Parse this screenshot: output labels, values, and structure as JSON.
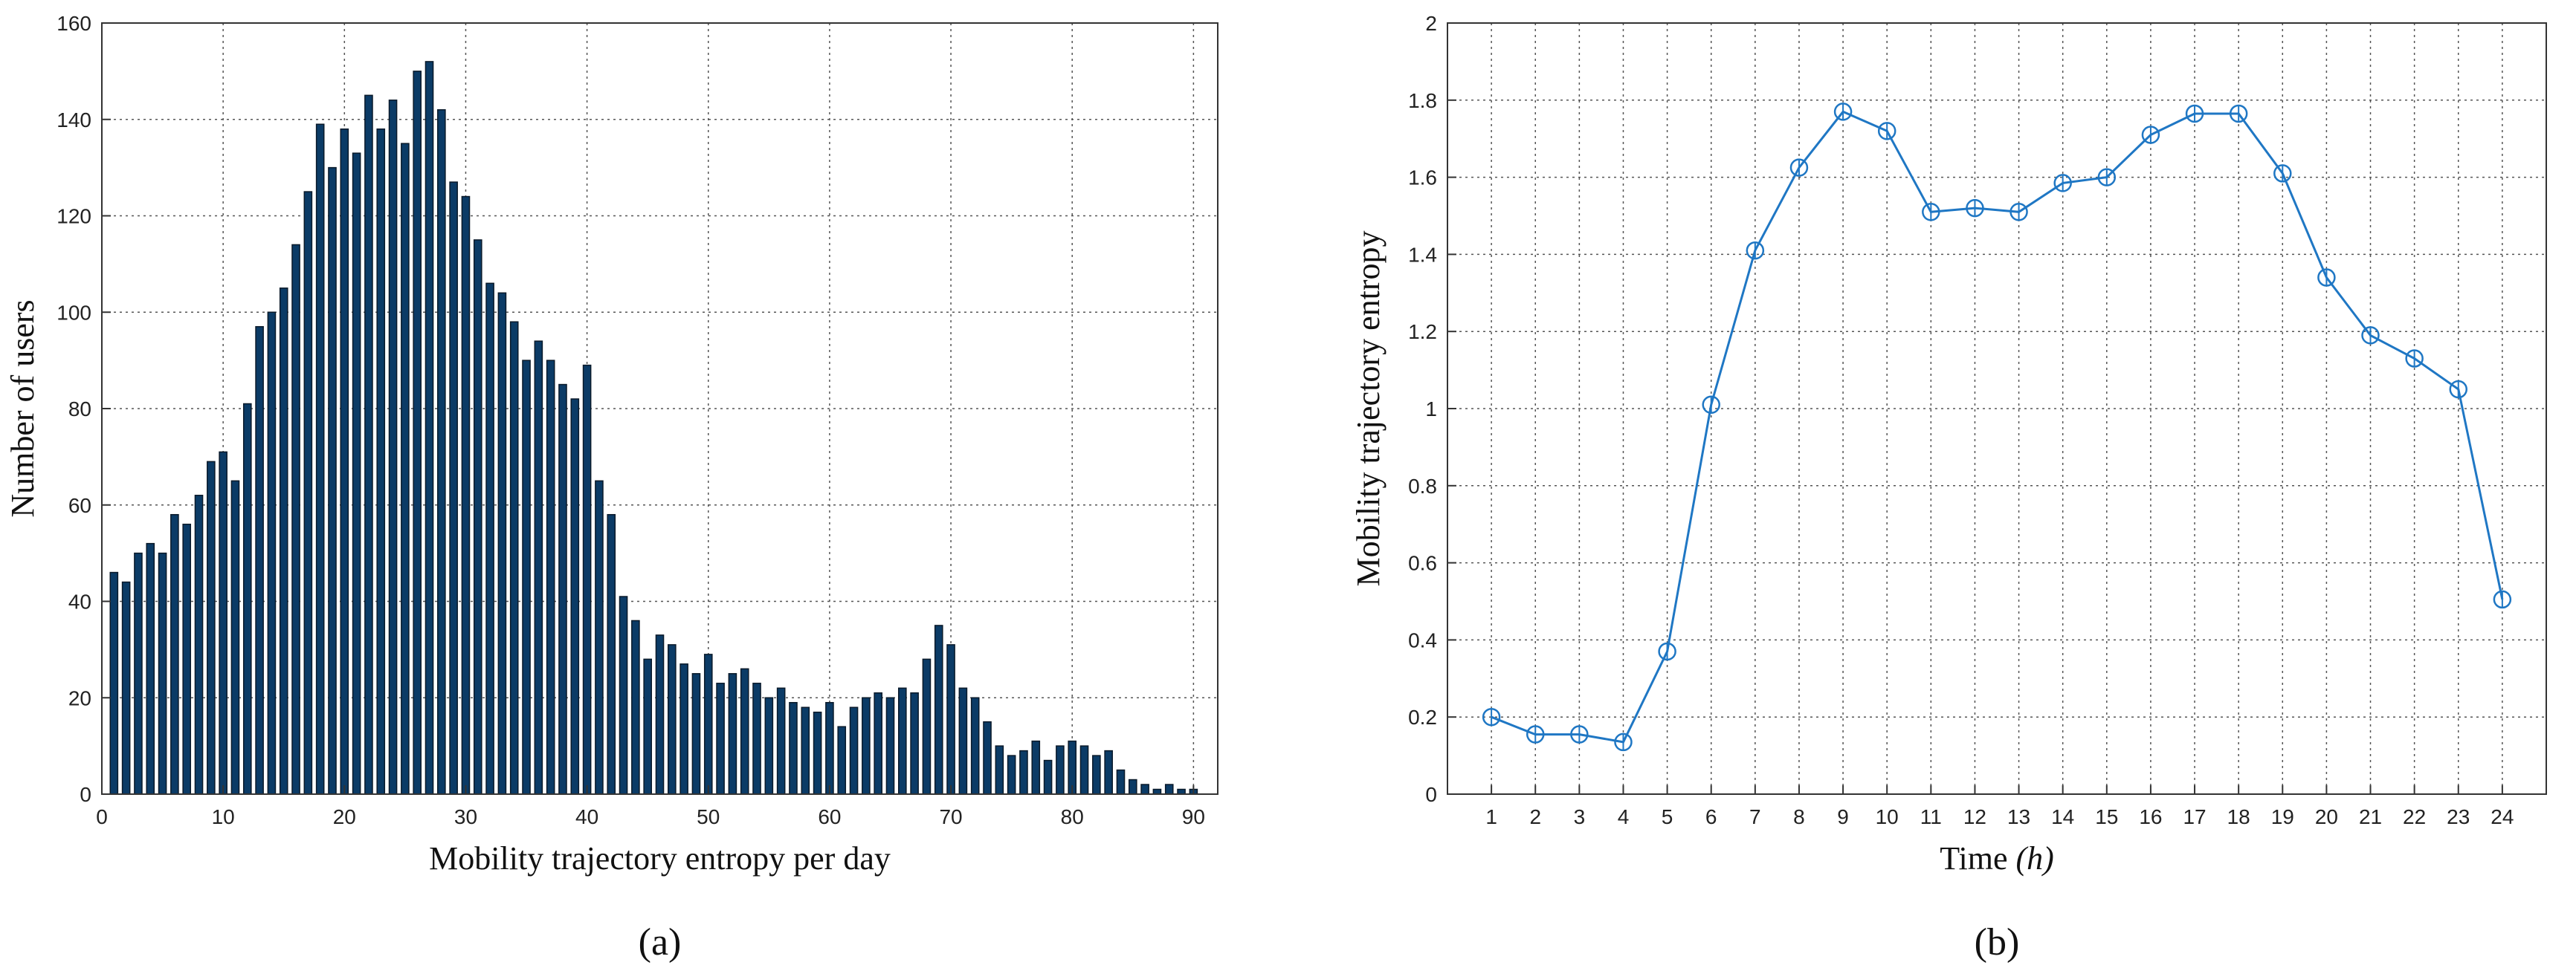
{
  "chart_data": [
    {
      "type": "bar",
      "caption": "(a)",
      "xlabel": "Mobility trajectory entropy per day",
      "ylabel": "Number of users",
      "xlim": [
        0,
        92
      ],
      "ylim": [
        0,
        160
      ],
      "xticks": [
        0,
        10,
        20,
        30,
        40,
        50,
        60,
        70,
        80,
        90
      ],
      "yticks": [
        0,
        20,
        40,
        60,
        80,
        100,
        120,
        140,
        160
      ],
      "grid": true,
      "bar_color": "#0b3b66",
      "x": [
        1,
        2,
        3,
        4,
        5,
        6,
        7,
        8,
        9,
        10,
        11,
        12,
        13,
        14,
        15,
        16,
        17,
        18,
        19,
        20,
        21,
        22,
        23,
        24,
        25,
        26,
        27,
        28,
        29,
        30,
        31,
        32,
        33,
        34,
        35,
        36,
        37,
        38,
        39,
        40,
        41,
        42,
        43,
        44,
        45,
        46,
        47,
        48,
        49,
        50,
        51,
        52,
        53,
        54,
        55,
        56,
        57,
        58,
        59,
        60,
        61,
        62,
        63,
        64,
        65,
        66,
        67,
        68,
        69,
        70,
        71,
        72,
        73,
        74,
        75,
        76,
        77,
        78,
        79,
        80,
        81,
        82,
        83,
        84,
        85,
        86,
        87,
        88,
        89,
        90
      ],
      "values": [
        46,
        44,
        50,
        52,
        50,
        58,
        56,
        62,
        69,
        71,
        65,
        81,
        97,
        100,
        105,
        114,
        125,
        139,
        130,
        138,
        133,
        145,
        138,
        144,
        135,
        150,
        152,
        142,
        127,
        124,
        115,
        106,
        104,
        98,
        90,
        94,
        90,
        85,
        82,
        89,
        65,
        58,
        41,
        36,
        28,
        33,
        31,
        27,
        25,
        29,
        23,
        25,
        26,
        23,
        20,
        22,
        19,
        18,
        17,
        19,
        14,
        18,
        20,
        21,
        20,
        22,
        21,
        28,
        35,
        31,
        22,
        20,
        15,
        10,
        8,
        9,
        11,
        7,
        10,
        11,
        10,
        8,
        9,
        5,
        3,
        2,
        1,
        2,
        1,
        1
      ]
    },
    {
      "type": "line",
      "caption": "(b)",
      "xlabel_text": "Time ",
      "xlabel_unit": "h",
      "ylabel": "Mobility trajectory entropy",
      "xlim": [
        0,
        25
      ],
      "ylim": [
        0,
        2
      ],
      "xticks": [
        1,
        2,
        3,
        4,
        5,
        6,
        7,
        8,
        9,
        10,
        11,
        12,
        13,
        14,
        15,
        16,
        17,
        18,
        19,
        20,
        21,
        22,
        23,
        24
      ],
      "yticks": [
        0,
        0.2,
        0.4,
        0.6,
        0.8,
        1,
        1.2,
        1.4,
        1.6,
        1.8,
        2
      ],
      "grid": true,
      "line_color": "#1f77c4",
      "marker": "circle",
      "x": [
        1,
        2,
        3,
        4,
        5,
        6,
        7,
        8,
        9,
        10,
        11,
        12,
        13,
        14,
        15,
        16,
        17,
        18,
        19,
        20,
        21,
        22,
        23,
        24
      ],
      "values": [
        0.2,
        0.155,
        0.155,
        0.135,
        0.37,
        1.01,
        1.41,
        1.625,
        1.77,
        1.72,
        1.51,
        1.52,
        1.51,
        1.585,
        1.6,
        1.71,
        1.765,
        1.765,
        1.61,
        1.34,
        1.19,
        1.13,
        1.05,
        0.505
      ]
    }
  ]
}
